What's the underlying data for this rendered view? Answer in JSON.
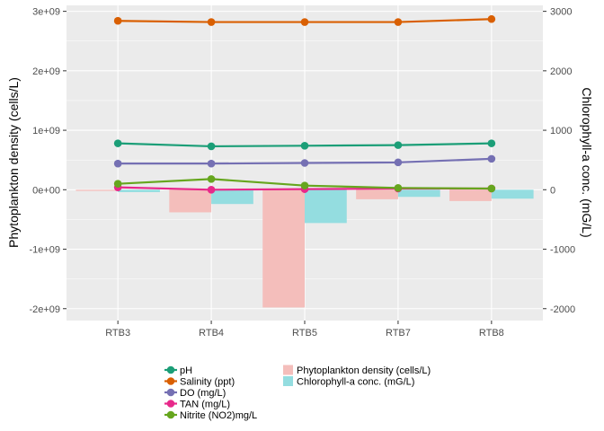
{
  "chart_data": {
    "type": "bar+line",
    "categories": [
      "RTB3",
      "RTB4",
      "RTB5",
      "RTB7",
      "RTB8"
    ],
    "left_axis": {
      "label": "Phytoplankton density (cells/L)",
      "ylim": [
        -2200000000.0,
        3100000000.0
      ],
      "ticks": [
        -2000000000.0,
        -1000000000.0,
        0,
        1000000000.0,
        2000000000.0,
        3000000000.0
      ],
      "tick_labels": [
        "-2e+09",
        "-1e+09",
        "0e+00",
        "1e+09",
        "2e+09",
        "3e+09"
      ]
    },
    "right_axis": {
      "label": "Chlorophyll-a conc. (mG/L)",
      "ylim": [
        -2200,
        3100
      ],
      "ticks": [
        -2000,
        -1000,
        0,
        1000,
        2000,
        3000
      ],
      "tick_labels": [
        "-2000",
        "-1000",
        "0",
        "1000",
        "2000",
        "3000"
      ]
    },
    "bars": [
      {
        "name": "Phytoplankton density (cells/L)",
        "color": "#F4BEBB",
        "values": [
          -20000000.0,
          -380000000.0,
          -1980000000.0,
          -160000000.0,
          -190000000.0
        ]
      },
      {
        "name": "Chlorophyll-a conc. (mG/L)",
        "color": "#94DDE0",
        "values": [
          -40,
          -240,
          -560,
          -120,
          -150
        ]
      }
    ],
    "series": [
      {
        "name": "pH",
        "color": "#1B9E77",
        "values": [
          780000000.0,
          730000000.0,
          740000000.0,
          750000000.0,
          780000000.0
        ]
      },
      {
        "name": "Salinity (ppt)",
        "color": "#D95F02",
        "values": [
          2840000000.0,
          2820000000.0,
          2820000000.0,
          2820000000.0,
          2870000000.0
        ]
      },
      {
        "name": "DO (mg/L)",
        "color": "#7570B3",
        "values": [
          440000000.0,
          440000000.0,
          450000000.0,
          460000000.0,
          520000000.0
        ]
      },
      {
        "name": "TAN (mg/L)",
        "color": "#E7298A",
        "values": [
          40000000.0,
          0.0,
          10000000.0,
          20000000.0,
          20000000.0
        ]
      },
      {
        "name": "Nitrite (NO2)mg/L",
        "color": "#66A61E",
        "values": [
          100000000.0,
          180000000.0,
          70000000.0,
          30000000.0,
          20000000.0
        ]
      }
    ],
    "grid": true,
    "legend_position": "bottom"
  }
}
